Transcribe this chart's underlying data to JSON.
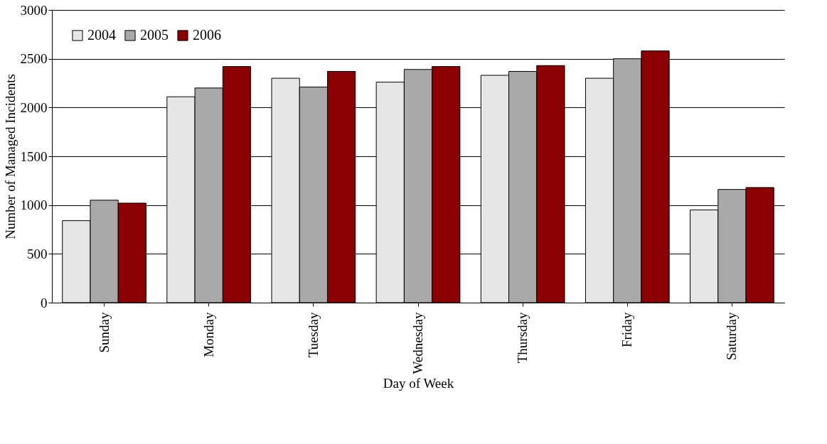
{
  "chart_data": {
    "type": "bar",
    "xlabel": "Day of Week",
    "ylabel": "Number of Managed Incidents",
    "categories": [
      "Sunday",
      "Monday",
      "Tuesday",
      "Wednesday",
      "Thursday",
      "Friday",
      "Saturday"
    ],
    "series": [
      {
        "name": "2004",
        "color": "#e6e6e6",
        "values": [
          840,
          2110,
          2300,
          2260,
          2330,
          2300,
          950
        ]
      },
      {
        "name": "2005",
        "color": "#a9a9a9",
        "values": [
          1050,
          2200,
          2210,
          2390,
          2370,
          2500,
          1160
        ]
      },
      {
        "name": "2006",
        "color": "#8b0000",
        "values": [
          1020,
          2420,
          2370,
          2420,
          2430,
          2580,
          1180
        ]
      }
    ],
    "ylim": [
      0,
      3000
    ],
    "yticks": [
      0,
      500,
      1000,
      1500,
      2000,
      2500,
      3000
    ],
    "grid": "y",
    "legend": "top left"
  }
}
